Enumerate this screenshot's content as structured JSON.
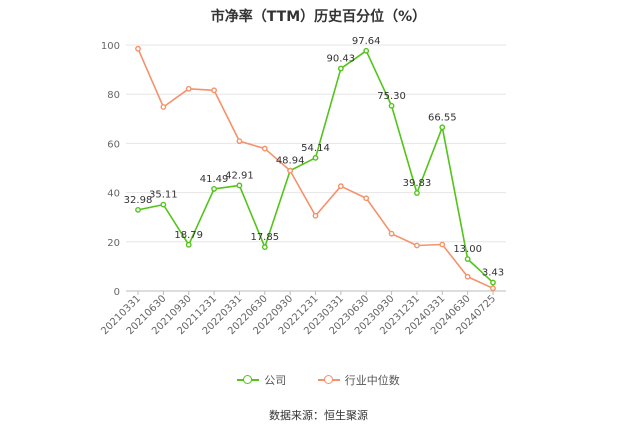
{
  "chart_data": {
    "type": "line",
    "title": "市净率（TTM）历史百分位（%）",
    "categories": [
      "20210331",
      "20210630",
      "20210930",
      "20211231",
      "20220331",
      "20220630",
      "20220930",
      "20221231",
      "20230331",
      "20230630",
      "20230930",
      "20231231",
      "20240331",
      "20240630",
      "20240725"
    ],
    "ylim": [
      0,
      100
    ],
    "yticks": [
      0,
      20,
      40,
      60,
      80,
      100
    ],
    "grid": true,
    "legend_position": "bottom",
    "series": [
      {
        "name": "公司",
        "color": "#52c41a",
        "labels": true,
        "values": [
          32.98,
          35.11,
          18.79,
          41.49,
          42.91,
          17.85,
          48.94,
          54.14,
          90.43,
          97.64,
          75.3,
          39.83,
          66.55,
          13.0,
          3.43
        ]
      },
      {
        "name": "行业中位数",
        "color": "#f5926a",
        "labels": false,
        "values": [
          98.5,
          74.8,
          82.2,
          81.6,
          60.9,
          57.9,
          48.9,
          30.6,
          42.6,
          37.7,
          23.3,
          18.5,
          18.9,
          5.8,
          1.1
        ]
      }
    ]
  },
  "source": "数据来源：恒生聚源"
}
